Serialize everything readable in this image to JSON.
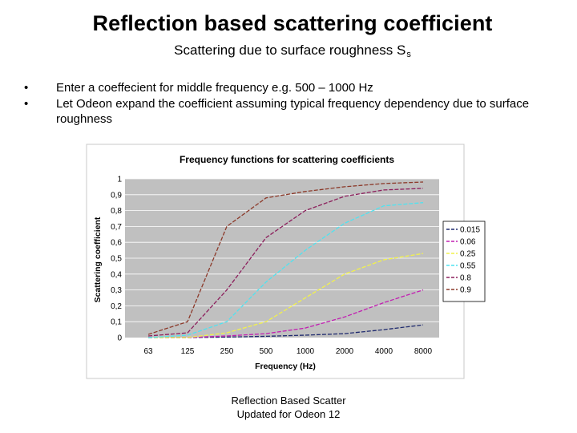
{
  "slide": {
    "title": "Reflection based scattering coefficient",
    "subtitle": "Scattering due to surface roughness  S",
    "subtitle_subscript": "s",
    "bullets": [
      "Enter a coeffecient for middle frequency e.g. 500 – 1000 Hz",
      "Let Odeon expand the coefficient assuming typical frequency dependency due to surface roughness"
    ],
    "caption_line1": "Reflection Based Scatter",
    "caption_line2": "Updated for Odeon 12",
    "bullet_glyph": "•"
  },
  "chart_data": {
    "type": "line",
    "title": "Frequency functions for scattering coefficients",
    "xlabel": "Frequency (Hz)",
    "ylabel": "Scattering coefficient",
    "categories": [
      "63",
      "125",
      "250",
      "500",
      "1000",
      "2000",
      "4000",
      "8000"
    ],
    "ylim": [
      0,
      1
    ],
    "yticks": [
      "0",
      "0,1",
      "0,2",
      "0,3",
      "0,4",
      "0,5",
      "0,6",
      "0,7",
      "0,8",
      "0,9",
      "1"
    ],
    "grid": true,
    "legend_position": "right",
    "series": [
      {
        "name": "0.015",
        "color": "#1f2a6e",
        "values": [
          0,
          0,
          0.003,
          0.008,
          0.015,
          0.025,
          0.05,
          0.08
        ]
      },
      {
        "name": "0.06",
        "color": "#c21fb2",
        "values": [
          0,
          0,
          0.01,
          0.025,
          0.06,
          0.13,
          0.22,
          0.3
        ]
      },
      {
        "name": "0.25",
        "color": "#f2f24a",
        "values": [
          0,
          0,
          0.03,
          0.1,
          0.25,
          0.4,
          0.49,
          0.53
        ]
      },
      {
        "name": "0.55",
        "color": "#4fe3f0",
        "values": [
          0,
          0.015,
          0.1,
          0.35,
          0.55,
          0.72,
          0.83,
          0.85
        ]
      },
      {
        "name": "0.8",
        "color": "#8c1f5c",
        "values": [
          0.01,
          0.03,
          0.3,
          0.63,
          0.8,
          0.89,
          0.93,
          0.94
        ]
      },
      {
        "name": "0.9",
        "color": "#8c3a2a",
        "values": [
          0.02,
          0.1,
          0.7,
          0.88,
          0.92,
          0.95,
          0.97,
          0.98
        ]
      }
    ]
  }
}
